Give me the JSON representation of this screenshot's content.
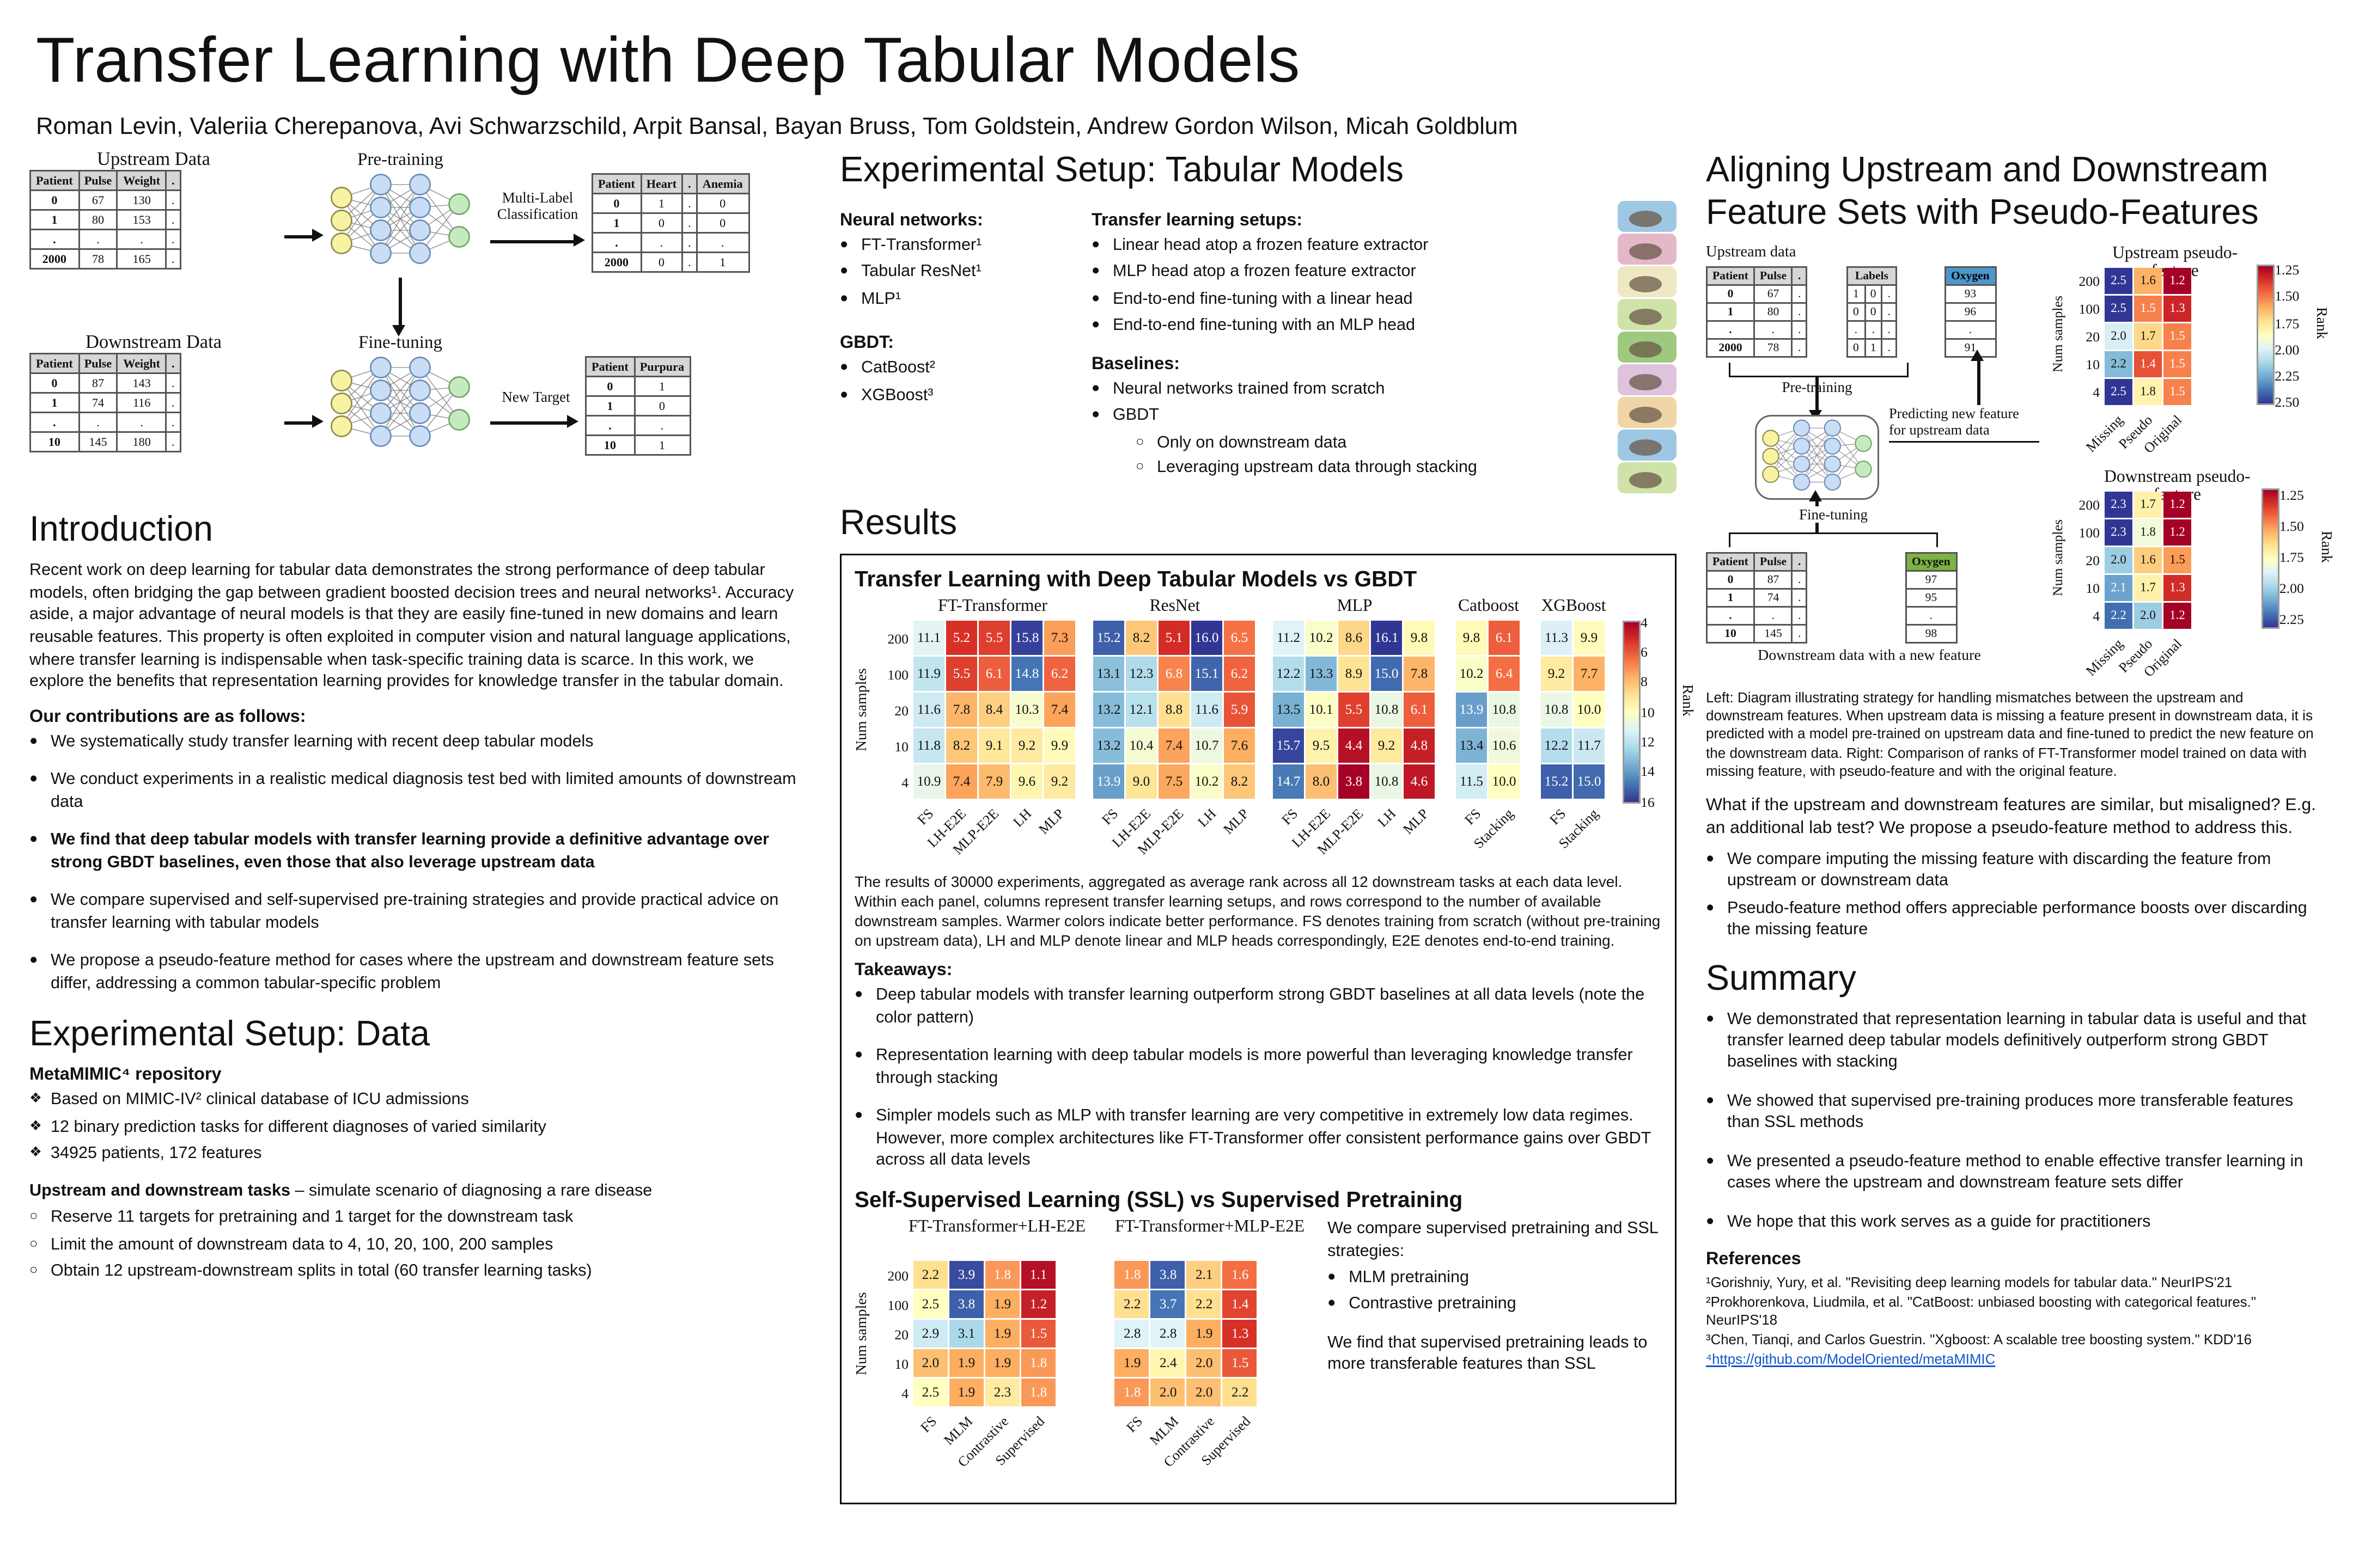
{
  "poster": {
    "title": "Transfer Learning with Deep Tabular Models",
    "authors": "Roman Levin, Valeriia Cherepanova, Avi Schwarzschild, Arpit Bansal, Bayan Bruss,  Tom Goldstein, Andrew Gordon Wilson, Micah Goldblum"
  },
  "top_figure": {
    "upstream_title": "Upstream Data",
    "downstream_title": "Downstream Data",
    "pretraining_label": "Pre-training",
    "finetuning_label": "Fine-tuning",
    "multilabel_label": "Multi-Label Classification",
    "new_target_label": "New Target",
    "upstream_table": {
      "headers": [
        "Patient",
        "Pulse",
        "Weight",
        "."
      ],
      "rows": [
        [
          "0",
          "67",
          "130",
          "."
        ],
        [
          "1",
          "80",
          "153",
          "."
        ],
        [
          ".",
          ".",
          ".",
          "."
        ],
        [
          "2000",
          "78",
          "165",
          "."
        ]
      ]
    },
    "pretrain_targets_table": {
      "headers": [
        "Patient",
        "Heart",
        ".",
        "Anemia"
      ],
      "rows": [
        [
          "0",
          "1",
          ".",
          "0"
        ],
        [
          "1",
          "0",
          ".",
          "0"
        ],
        [
          ".",
          ".",
          ".",
          "."
        ],
        [
          "2000",
          "0",
          ".",
          "1"
        ]
      ]
    },
    "downstream_table": {
      "headers": [
        "Patient",
        "Pulse",
        "Weight",
        "."
      ],
      "rows": [
        [
          "0",
          "87",
          "143",
          "."
        ],
        [
          "1",
          "74",
          "116",
          "."
        ],
        [
          ".",
          ".",
          ".",
          "."
        ],
        [
          "10",
          "145",
          "180",
          "."
        ]
      ]
    },
    "new_target_table": {
      "headers": [
        "Patient",
        "Purpura"
      ],
      "rows": [
        [
          "0",
          "1"
        ],
        [
          "1",
          "0"
        ],
        [
          ".",
          "."
        ],
        [
          "10",
          "1"
        ]
      ]
    }
  },
  "introduction": {
    "heading": "Introduction",
    "paragraph": "Recent work on deep learning for tabular data demonstrates the strong performance of deep tabular models, often bridging the gap between gradient boosted decision trees and neural networks¹. Accuracy aside, a major advantage of neural models is that they are easily fine-tuned in new domains and learn reusable features. This property is often exploited in computer vision and natural language applications, where transfer learning is indispensable when task-specific training data is scarce. In this work, we explore the benefits that representation learning provides for knowledge transfer in the tabular domain.",
    "contributions_heading": "Our contributions are as follows:",
    "contributions": [
      {
        "text": "We systematically study transfer learning with recent deep tabular models"
      },
      {
        "text": "We conduct experiments in a realistic medical diagnosis test bed with limited amounts of downstream data"
      },
      {
        "text": "We find that deep tabular models with transfer learning provide a definitive advantage over strong GBDT baselines, even those that also leverage upstream data",
        "bold": true
      },
      {
        "text": "We compare supervised and self-supervised pre-training strategies and provide practical advice on transfer learning with tabular models"
      },
      {
        "text": "We propose a pseudo-feature method for cases where the upstream and downstream feature sets differ, addressing a common tabular-specific problem"
      }
    ]
  },
  "setup_data": {
    "heading": "Experimental Setup: Data",
    "repo_heading": "MetaMIMIC⁴ repository",
    "repo_bullets": [
      {
        "text": "Based on MIMIC-IV² clinical database of ICU admissions"
      },
      {
        "text": "12 binary prediction tasks for different diagnoses of varied similarity"
      },
      {
        "text": "34925 patients, 172 features"
      }
    ],
    "tasks_lead_bold": "Upstream and downstream tasks",
    "tasks_lead_rest": " – simulate scenario of diagnosing a rare disease",
    "task_bullets": [
      {
        "text": "Reserve 11 targets for pretraining and 1 target for the downstream task"
      },
      {
        "text": "Limit the amount of downstream data to 4, 10, 20, 100, 200 samples"
      },
      {
        "text": "Obtain 12 upstream-downstream splits in total (60 transfer learning tasks)"
      }
    ]
  },
  "setup_models": {
    "heading": "Experimental Setup: Tabular Models",
    "nn_heading": "Neural networks:",
    "nn_items": [
      {
        "text": "FT-Transformer¹"
      },
      {
        "text": "Tabular ResNet¹"
      },
      {
        "text": "MLP¹"
      }
    ],
    "gbdt_heading": "GBDT:",
    "gbdt_items": [
      {
        "text": "CatBoost²"
      },
      {
        "text": "XGBoost³"
      }
    ],
    "tl_heading": "Transfer learning setups:",
    "tl_items": [
      {
        "text": "Linear head atop a frozen feature extractor"
      },
      {
        "text": "MLP head atop a frozen feature extractor"
      },
      {
        "text": "End-to-end fine-tuning with a linear head"
      },
      {
        "text": "End-to-end fine-tuning with an MLP head"
      }
    ],
    "baselines_heading": "Baselines:",
    "baseline_items": [
      {
        "text": "Neural networks trained from scratch"
      },
      {
        "text": "GBDT",
        "sub": [
          {
            "text": "Only on downstream data"
          },
          {
            "text": "Leveraging upstream data through stacking"
          }
        ]
      }
    ]
  },
  "results": {
    "heading": "Results",
    "figure_title": "Transfer Learning with Deep Tabular Models vs GBDT",
    "caption": "The results of 30000 experiments, aggregated as average rank across all 12 downstream tasks at each data level. Within each panel, columns represent transfer learning setups, and rows correspond to the number of available downstream samples. Warmer colors indicate better performance. FS denotes training from scratch (without pre-training on upstream data), LH and MLP denote linear and MLP heads correspondingly, E2E denotes end-to-end training.",
    "takeaways_heading": "Takeaways:",
    "takeaways": [
      {
        "text": "Deep tabular models with transfer learning outperform strong GBDT baselines at all data levels (note the color pattern)"
      },
      {
        "text": "Representation learning with deep tabular models is more powerful than leveraging knowledge transfer through stacking"
      },
      {
        "text": "Simpler models such as MLP with transfer learning are very competitive in extremely low data regimes. However, more complex architectures like FT-Transformer offer consistent performance gains over GBDT across all data levels"
      }
    ],
    "ssl_heading": "Self-Supervised Learning (SSL) vs Supervised Pretraining",
    "ssl_text1": "We compare supervised pretraining and SSL strategies:",
    "ssl_bullets": [
      {
        "text": "MLM pretraining"
      },
      {
        "text": "Contrastive pretraining"
      }
    ],
    "ssl_text2": "We find that supervised pretraining leads to more transferable features than SSL"
  },
  "aligning": {
    "heading": "Aligning Upstream and Downstream Feature Sets with Pseudo-Features",
    "upstream_data_label": "Upstream data",
    "pretraining_label": "Pre-training",
    "predicting_label": "Predicting new feature for upstream data",
    "finetuning_label": "Fine-tuning",
    "downstream_caption": "Downstream data with a new feature",
    "upstream_small_table": {
      "headers": [
        "Patient",
        "Pulse",
        "."
      ],
      "rows": [
        [
          "0",
          "67",
          "."
        ],
        [
          "1",
          "80",
          "."
        ],
        [
          ".",
          ".",
          "."
        ],
        [
          "2000",
          "78",
          "."
        ]
      ]
    },
    "labels_table": {
      "header_span": "Labels",
      "cols": 3,
      "rows": [
        [
          "1",
          "0",
          "."
        ],
        [
          "0",
          "0",
          "."
        ],
        [
          ".",
          ".",
          "."
        ],
        [
          "0",
          "1",
          "."
        ]
      ]
    },
    "oxygen_up_table": {
      "headers": [
        "Oxygen"
      ],
      "rows": [
        [
          "93"
        ],
        [
          "96"
        ],
        [
          "."
        ],
        [
          "91"
        ]
      ]
    },
    "downstream_small_table": {
      "headers": [
        "Patient",
        "Pulse",
        "."
      ],
      "rows": [
        [
          "0",
          "87",
          "."
        ],
        [
          "1",
          "74",
          "."
        ],
        [
          ".",
          ".",
          "."
        ],
        [
          "10",
          "145",
          "."
        ]
      ]
    },
    "oxygen_down_table": {
      "headers": [
        "Oxygen"
      ],
      "rows": [
        [
          "97"
        ],
        [
          "95"
        ],
        [
          "."
        ],
        [
          "98"
        ]
      ]
    },
    "caption": "Left: Diagram illustrating strategy for handling mismatches between the upstream and downstream features. When upstream data is missing a feature present in downstream data, it is predicted with a model pre-trained on upstream data and fine-tuned to predict the new feature on the downstream data. Right: Comparison of ranks of FT-Transformer model trained on data with missing feature, with pseudo-feature and with the original feature.",
    "question": "What if the upstream and downstream features are similar, but misaligned? E.g. an additional lab test? We propose a pseudo-feature method to address this.",
    "bullets": [
      {
        "text": "We compare imputing the missing feature with discarding the feature from upstream or downstream data"
      },
      {
        "text": "Pseudo-feature method offers appreciable performance boosts over discarding the missing feature"
      }
    ]
  },
  "summary": {
    "heading": "Summary",
    "bullets": [
      {
        "text": "We demonstrated that representation learning in tabular data is useful and that transfer learned deep tabular models definitively outperform strong GBDT baselines with stacking"
      },
      {
        "text": "We showed that supervised pre-training produces more transferable features than SSL methods"
      },
      {
        "text": "We presented a pseudo-feature method to enable effective transfer learning in cases where the upstream and downstream feature sets differ"
      },
      {
        "text": "We hope that this work serves as a guide for practitioners"
      }
    ]
  },
  "references": {
    "heading": "References",
    "items": [
      {
        "text": "¹Gorishniy, Yury, et al. \"Revisiting deep learning models for tabular data.\" NeurIPS'21"
      },
      {
        "text": "²Prokhorenkova, Liudmila, et al. \"CatBoost: unbiased boosting with categorical features.\" NeurIPS'18"
      },
      {
        "text": "³Chen, Tianqi, and Carlos Guestrin. \"Xgboost: A scalable tree boosting system.\" KDD'16"
      },
      {
        "link_text": "⁴https://github.com/ModelOriented/metaMIMIC"
      }
    ]
  },
  "chart_data": [
    {
      "type": "heatmap",
      "title": "Transfer Learning with Deep Tabular Models vs GBDT",
      "ylabel": "Num samples",
      "rows": [
        "200",
        "100",
        "20",
        "10",
        "4"
      ],
      "vmin": 4,
      "vmax": 16,
      "colorbar": {
        "label": "Rank",
        "vmin": 4,
        "vmax": 16,
        "ticks": [
          "4",
          "6",
          "8",
          "10",
          "12",
          "14",
          "16"
        ]
      },
      "panels": [
        {
          "title": "FT-Transformer",
          "columns": [
            "FS",
            "LH-E2E",
            "MLP-E2E",
            "LH",
            "MLP"
          ],
          "values": [
            [
              "11.1",
              "5.2",
              "5.5",
              "15.8",
              "7.3"
            ],
            [
              "11.9",
              "5.5",
              "6.1",
              "14.8",
              "6.2"
            ],
            [
              "11.6",
              "7.8",
              "8.4",
              "10.3",
              "7.4"
            ],
            [
              "11.8",
              "8.2",
              "9.1",
              "9.2",
              "9.9"
            ],
            [
              "10.9",
              "7.4",
              "7.9",
              "9.6",
              "9.2"
            ]
          ]
        },
        {
          "title": "ResNet",
          "columns": [
            "FS",
            "LH-E2E",
            "MLP-E2E",
            "LH",
            "MLP"
          ],
          "values": [
            [
              "15.2",
              "8.2",
              "5.1",
              "16.0",
              "6.5"
            ],
            [
              "13.1",
              "12.3",
              "6.8",
              "15.1",
              "6.2"
            ],
            [
              "13.2",
              "12.1",
              "8.8",
              "11.6",
              "5.9"
            ],
            [
              "13.2",
              "10.4",
              "7.4",
              "10.7",
              "7.6"
            ],
            [
              "13.9",
              "9.0",
              "7.5",
              "10.2",
              "8.2"
            ]
          ]
        },
        {
          "title": "MLP",
          "columns": [
            "FS",
            "LH-E2E",
            "MLP-E2E",
            "LH",
            "MLP"
          ],
          "values": [
            [
              "11.2",
              "10.2",
              "8.6",
              "16.1",
              "9.8"
            ],
            [
              "12.2",
              "13.3",
              "8.9",
              "15.0",
              "7.8"
            ],
            [
              "13.5",
              "10.1",
              "5.5",
              "10.8",
              "6.1"
            ],
            [
              "15.7",
              "9.5",
              "4.4",
              "9.2",
              "4.8"
            ],
            [
              "14.7",
              "8.0",
              "3.8",
              "10.8",
              "4.6"
            ]
          ]
        },
        {
          "title": "Catboost",
          "columns": [
            "FS",
            "Stacking"
          ],
          "values": [
            [
              "9.8",
              "6.1"
            ],
            [
              "10.2",
              "6.4"
            ],
            [
              "13.9",
              "10.8"
            ],
            [
              "13.4",
              "10.6"
            ],
            [
              "11.5",
              "10.0"
            ]
          ]
        },
        {
          "title": "XGBoost",
          "columns": [
            "FS",
            "Stacking"
          ],
          "values": [
            [
              "11.3",
              "9.9"
            ],
            [
              "9.2",
              "7.7"
            ],
            [
              "10.8",
              "10.0"
            ],
            [
              "12.2",
              "11.7"
            ],
            [
              "15.2",
              "15.0"
            ]
          ]
        }
      ]
    },
    {
      "type": "heatmap",
      "title": "Self-Supervised Learning (SSL) vs Supervised Pretraining",
      "ylabel": "Num samples",
      "rows": [
        "200",
        "100",
        "20",
        "10",
        "4"
      ],
      "vmin": 1,
      "vmax": 4,
      "panels": [
        {
          "title": "FT-Transformer+LH-E2E",
          "columns": [
            "FS",
            "MLM",
            "Contrastive",
            "Supervised"
          ],
          "values": [
            [
              "2.2",
              "3.9",
              "1.8",
              "1.1"
            ],
            [
              "2.5",
              "3.8",
              "1.9",
              "1.2"
            ],
            [
              "2.9",
              "3.1",
              "1.9",
              "1.5"
            ],
            [
              "2.0",
              "1.9",
              "1.9",
              "1.8"
            ],
            [
              "2.5",
              "1.9",
              "2.3",
              "1.8"
            ]
          ]
        },
        {
          "title": "FT-Transformer+MLP-E2E",
          "columns": [
            "FS",
            "MLM",
            "Contrastive",
            "Supervised"
          ],
          "values": [
            [
              "1.8",
              "3.8",
              "2.1",
              "1.6"
            ],
            [
              "2.2",
              "3.7",
              "2.2",
              "1.4"
            ],
            [
              "2.8",
              "2.8",
              "1.9",
              "1.3"
            ],
            [
              "1.9",
              "2.4",
              "2.0",
              "1.5"
            ],
            [
              "1.8",
              "2.0",
              "2.0",
              "2.2"
            ]
          ]
        }
      ]
    },
    {
      "type": "heatmap",
      "title": "Upstream pseudo-feature",
      "ylabel": "Num samples",
      "rows": [
        "200",
        "100",
        "20",
        "10",
        "4"
      ],
      "columns": [
        "Missing",
        "Pseudo",
        "Original"
      ],
      "vmin": 1.2,
      "vmax": 2.5,
      "colorbar": {
        "label": "Rank",
        "vmin": 1.2,
        "vmax": 2.5,
        "ticks": [
          "1.25",
          "1.50",
          "1.75",
          "2.00",
          "2.25",
          "2.50"
        ]
      },
      "values": [
        [
          "2.5",
          "1.6",
          "1.2"
        ],
        [
          "2.5",
          "1.5",
          "1.3"
        ],
        [
          "2.0",
          "1.7",
          "1.5"
        ],
        [
          "2.2",
          "1.4",
          "1.5"
        ],
        [
          "2.5",
          "1.8",
          "1.5"
        ]
      ]
    },
    {
      "type": "heatmap",
      "title": "Downstream pseudo-feature",
      "ylabel": "Num samples",
      "rows": [
        "200",
        "100",
        "20",
        "10",
        "4"
      ],
      "columns": [
        "Missing",
        "Pseudo",
        "Original"
      ],
      "vmin": 1.2,
      "vmax": 2.3,
      "colorbar": {
        "label": "Rank",
        "vmin": 1.2,
        "vmax": 2.3,
        "ticks": [
          "1.25",
          "1.50",
          "1.75",
          "2.00",
          "2.25"
        ]
      },
      "values": [
        [
          "2.3",
          "1.7",
          "1.2"
        ],
        [
          "2.3",
          "1.8",
          "1.2"
        ],
        [
          "2.0",
          "1.6",
          "1.5"
        ],
        [
          "2.1",
          "1.7",
          "1.3"
        ],
        [
          "2.2",
          "2.0",
          "1.2"
        ]
      ]
    }
  ]
}
